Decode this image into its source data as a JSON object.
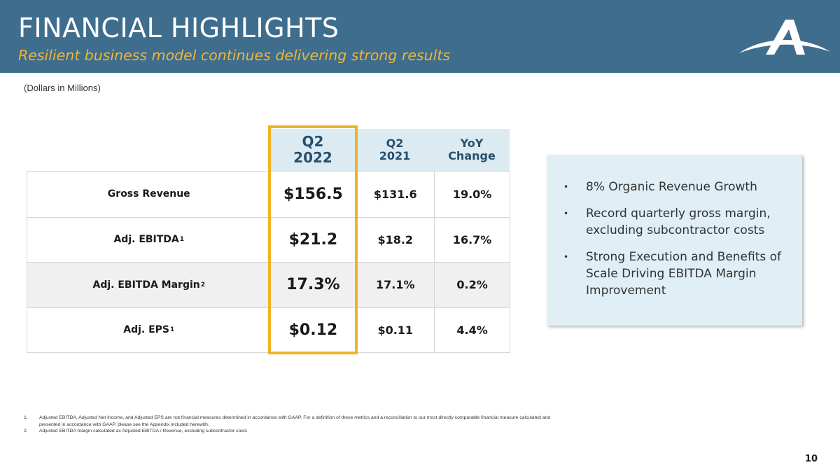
{
  "header": {
    "title": "FINANCIAL HIGHLIGHTS",
    "subtitle": "Resilient business model continues delivering strong results"
  },
  "units_note": "(Dollars in Millions)",
  "table": {
    "columns": [
      {
        "line1": "Q2",
        "line2": "2022"
      },
      {
        "line1": "Q2",
        "line2": "2021"
      },
      {
        "line1": "YoY",
        "line2": "Change"
      }
    ],
    "rows": [
      {
        "label": "Gross Revenue",
        "sup": "",
        "q2_2022": "$156.5",
        "q2_2021": "$131.6",
        "yoy": "19.0%"
      },
      {
        "label": "Adj. EBITDA",
        "sup": "1",
        "q2_2022": "$21.2",
        "q2_2021": "$18.2",
        "yoy": "16.7%"
      },
      {
        "label": "Adj. EBITDA Margin",
        "sup": "2",
        "q2_2022": "17.3%",
        "q2_2021": "17.1%",
        "yoy": "0.2%"
      },
      {
        "label": "Adj. EPS",
        "sup": "1",
        "q2_2022": "$0.12",
        "q2_2021": "$0.11",
        "yoy": "4.4%"
      }
    ]
  },
  "callout": {
    "bullet_char": "•",
    "bullets": [
      "8% Organic Revenue Growth",
      "Record quarterly gross margin, excluding subcontractor costs",
      "Strong Execution and Benefits of Scale Driving EBITDA Margin Improvement"
    ]
  },
  "footnotes": [
    {
      "num": "1.",
      "text": "Adjusted EBITDA, Adjusted Net Income, and Adjusted EPS are not financial measures determined in accordance with GAAP. For a definition of these metrics and a reconciliation to our most directly comparable financial measure calculated and presented in accordance with GAAP, please see the Appendix included herewith."
    },
    {
      "num": "2.",
      "text": "Adjusted EBITDA margin calculated as Adjusted EBITDA / Revenue, excluding subcontractor costs"
    }
  ],
  "page_number": "10",
  "colors": {
    "header_bg": "#3e6d8e",
    "subtitle": "#f1b434",
    "highlight_border": "#f0b323",
    "table_header_bg": "#dcebf2",
    "callout_bg": "#dfeff5"
  },
  "logo_icon": "company-logo-icon"
}
